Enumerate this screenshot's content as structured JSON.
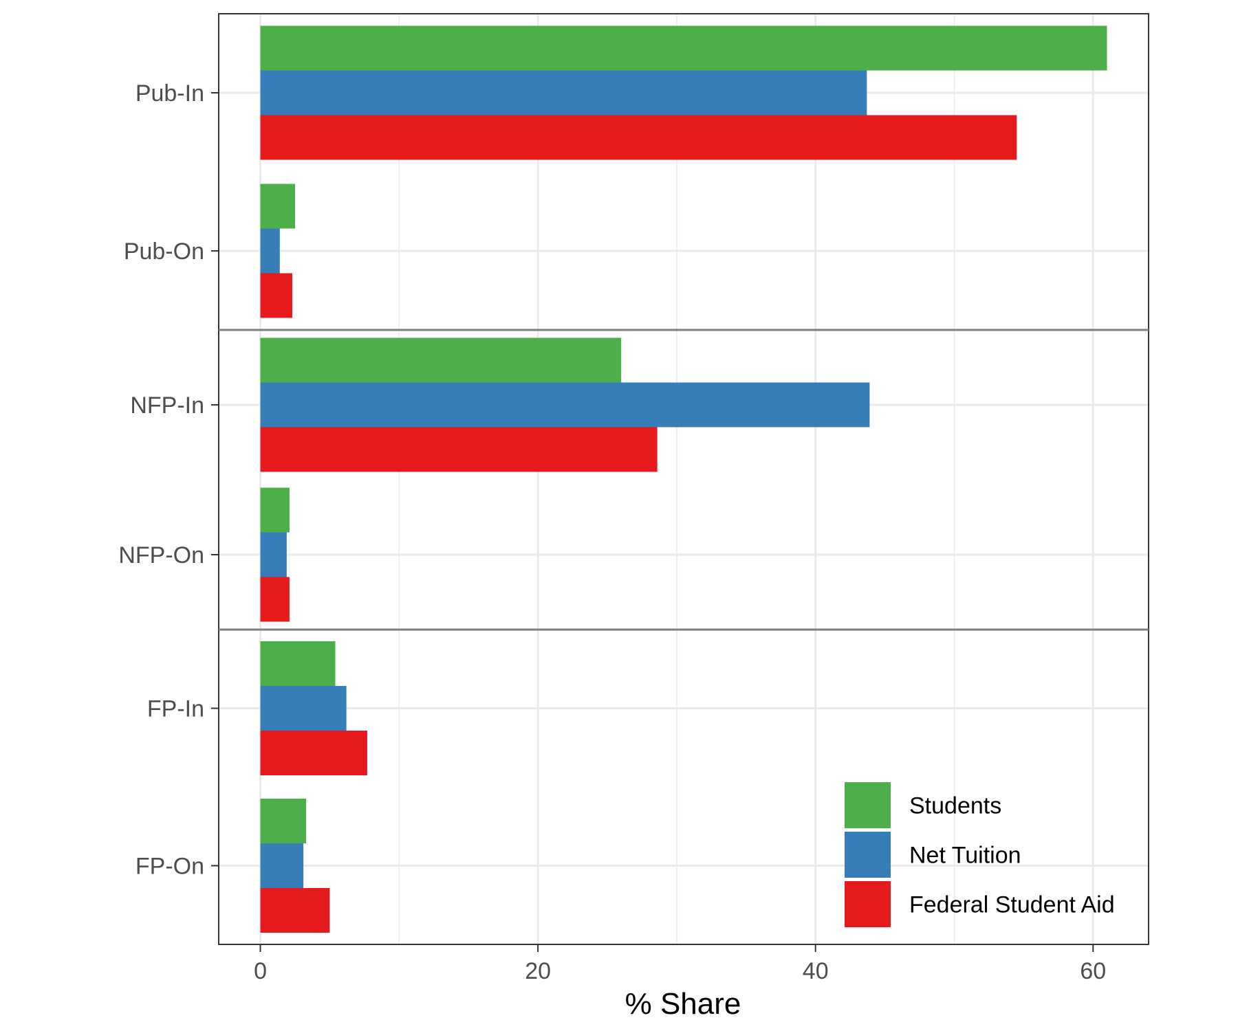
{
  "chart_data": {
    "type": "bar",
    "orientation": "horizontal",
    "categories": [
      "Pub-In",
      "Pub-On",
      "NFP-In",
      "NFP-On",
      "FP-In",
      "FP-On"
    ],
    "panels": [
      {
        "categories": [
          "Pub-In",
          "Pub-On"
        ]
      },
      {
        "categories": [
          "NFP-In",
          "NFP-On"
        ]
      },
      {
        "categories": [
          "FP-In",
          "FP-On"
        ]
      }
    ],
    "series": [
      {
        "name": "Students",
        "color": "#4DAF4A",
        "values": [
          61.0,
          2.5,
          26.0,
          2.1,
          5.4,
          3.3
        ]
      },
      {
        "name": "Net Tuition",
        "color": "#377EB8",
        "values": [
          43.7,
          1.4,
          43.9,
          1.9,
          6.2,
          3.1
        ]
      },
      {
        "name": "Federal Student Aid",
        "color": "#E41A1C",
        "values": [
          54.5,
          2.3,
          28.6,
          2.1,
          7.7,
          5.0
        ]
      }
    ],
    "xlabel": "% Share",
    "ylabel": "",
    "xlim": [
      -3,
      64
    ],
    "xticks": [
      0,
      20,
      40,
      60
    ],
    "xticks_minor": [
      10,
      30,
      50
    ],
    "grid": true,
    "legend_position": "bottom-right"
  }
}
